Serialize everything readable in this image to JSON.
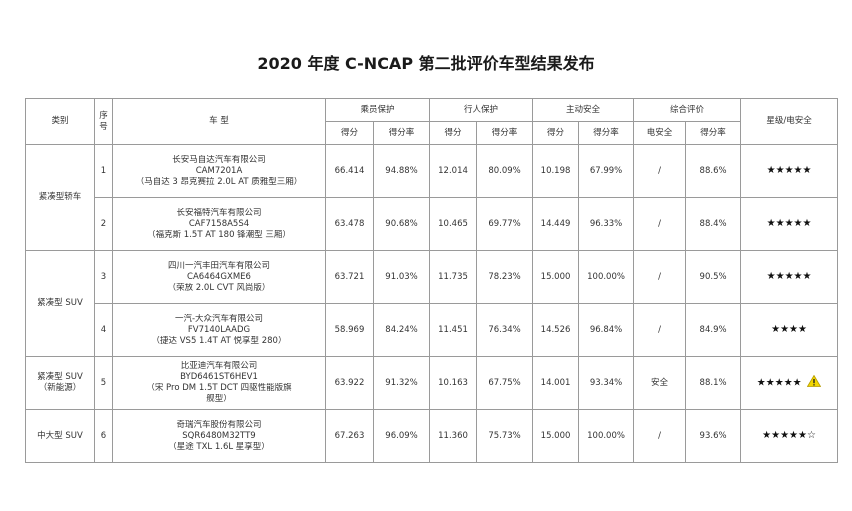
{
  "title": "2020 年度 C-NCAP 第二批评价车型结果发布",
  "headers": {
    "category": "类别",
    "seq_line1": "序",
    "seq_line2": "号",
    "model": "车 型",
    "occupant": "乘员保护",
    "pedestrian": "行人保护",
    "active": "主动安全",
    "overall": "综合评价",
    "rating": "星级/电安全",
    "score": "得分",
    "rate": "得分率",
    "electric": "电安全"
  },
  "rows": [
    {
      "category": "紧凑型轿车",
      "seq": "1",
      "model": [
        "长安马自达汽车有限公司",
        "CAM7201A",
        "（马自达 3 昂克赛拉 2.0L AT 质雅型三厢）"
      ],
      "occ_score": "66.414",
      "occ_rate": "94.88%",
      "ped_score": "12.014",
      "ped_rate": "80.09%",
      "act_score": "10.198",
      "act_rate": "67.99%",
      "electric": "/",
      "overall_rate": "88.6%",
      "stars": "★★★★★",
      "warning": false
    },
    {
      "category": "",
      "seq": "2",
      "model": [
        "长安福特汽车有限公司",
        "CAF7158A5S4",
        "（福克斯 1.5T AT 180 锋潮型 三厢）"
      ],
      "occ_score": "63.478",
      "occ_rate": "90.68%",
      "ped_score": "10.465",
      "ped_rate": "69.77%",
      "act_score": "14.449",
      "act_rate": "96.33%",
      "electric": "/",
      "overall_rate": "88.4%",
      "stars": "★★★★★",
      "warning": false
    },
    {
      "category": "紧凑型 SUV",
      "seq": "3",
      "model": [
        "四川一汽丰田汽车有限公司",
        "CA6464GXME6",
        "（荣放 2.0L CVT 风尚版）"
      ],
      "occ_score": "63.721",
      "occ_rate": "91.03%",
      "ped_score": "11.735",
      "ped_rate": "78.23%",
      "act_score": "15.000",
      "act_rate": "100.00%",
      "electric": "/",
      "overall_rate": "90.5%",
      "stars": "★★★★★",
      "warning": false
    },
    {
      "category": "",
      "seq": "4",
      "model": [
        "一汽-大众汽车有限公司",
        "FV7140LAADG",
        "（捷达 VS5 1.4T AT 悦享型 280）"
      ],
      "occ_score": "58.969",
      "occ_rate": "84.24%",
      "ped_score": "11.451",
      "ped_rate": "76.34%",
      "act_score": "14.526",
      "act_rate": "96.84%",
      "electric": "/",
      "overall_rate": "84.9%",
      "stars": "★★★★",
      "warning": false
    },
    {
      "category": "紧凑型 SUV\n（新能源）",
      "seq": "5",
      "model": [
        "比亚迪汽车有限公司",
        "BYD6461ST6HEV1",
        "（宋 Pro DM 1.5T DCT 四驱性能版旗",
        "舰型）"
      ],
      "occ_score": "63.922",
      "occ_rate": "91.32%",
      "ped_score": "10.163",
      "ped_rate": "67.75%",
      "act_score": "14.001",
      "act_rate": "93.34%",
      "electric": "安全",
      "overall_rate": "88.1%",
      "stars": "★★★★★",
      "warning": true
    },
    {
      "category": "中大型 SUV",
      "seq": "6",
      "model": [
        "奇瑞汽车股份有限公司",
        "SQR6480M32TT9",
        "（星途 TXL 1.6L 星享型）"
      ],
      "occ_score": "67.263",
      "occ_rate": "96.09%",
      "ped_score": "11.360",
      "ped_rate": "75.73%",
      "act_score": "15.000",
      "act_rate": "100.00%",
      "electric": "/",
      "overall_rate": "93.6%",
      "stars": "★★★★★☆",
      "warning": false
    }
  ],
  "colors": {
    "border": "#9a9a9a",
    "warning": "#f2d600"
  }
}
